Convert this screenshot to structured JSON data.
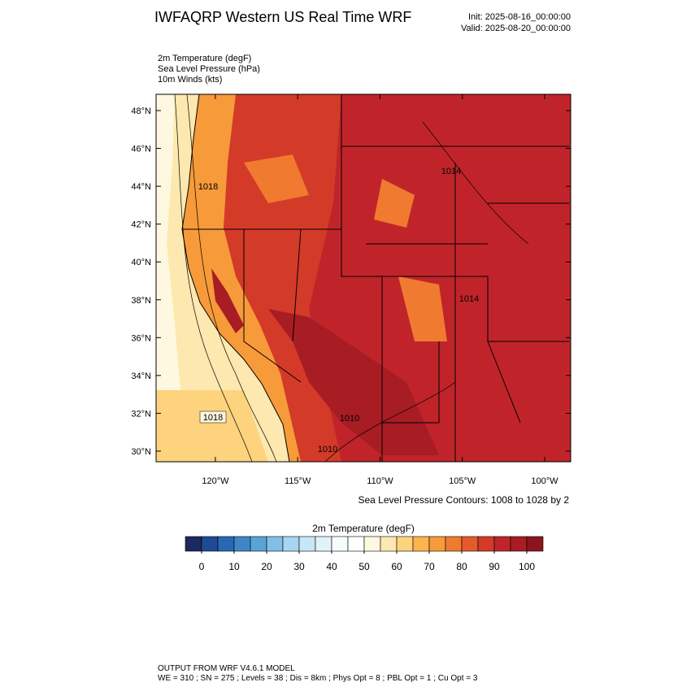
{
  "header": {
    "title": "IWFAQRP Western US Real Time WRF",
    "init": "Init: 2025-08-16_00:00:00",
    "valid": "Valid: 2025-08-20_00:00:00"
  },
  "fields": [
    "2m Temperature   (degF)",
    "Sea Level Pressure   (hPa)",
    "10m Winds   (kts)"
  ],
  "map": {
    "lon_range": [
      -123.6,
      -98.42
    ],
    "lat_range": [
      29.44,
      48.86
    ],
    "lat_ticks": [
      {
        "value": 30,
        "label": "30°N"
      },
      {
        "value": 32,
        "label": "32°N"
      },
      {
        "value": 34,
        "label": "34°N"
      },
      {
        "value": 36,
        "label": "36°N"
      },
      {
        "value": 38,
        "label": "38°N"
      },
      {
        "value": 40,
        "label": "40°N"
      },
      {
        "value": 42,
        "label": "42°N"
      },
      {
        "value": 44,
        "label": "44°N"
      },
      {
        "value": 46,
        "label": "46°N"
      },
      {
        "value": 48,
        "label": "48°N"
      }
    ],
    "lon_ticks": [
      {
        "value": -120,
        "label": "120°W"
      },
      {
        "value": -115,
        "label": "115°W"
      },
      {
        "value": -110,
        "label": "110°W"
      },
      {
        "value": -105,
        "label": "105°W"
      },
      {
        "value": -100,
        "label": "100°W"
      }
    ],
    "contour_labels": [
      "1018",
      "1010",
      "1018",
      "1014",
      "1014",
      "1010"
    ],
    "contour_note": "Sea Level Pressure Contours: 1008 to 1028 by 2"
  },
  "colorbar": {
    "title": "2m Temperature  (degF)",
    "ticks": [
      0,
      10,
      20,
      30,
      40,
      50,
      60,
      70,
      80,
      90,
      100
    ],
    "step": 5,
    "colors": [
      "#1a2a60",
      "#1f4a94",
      "#2a68b4",
      "#3f86c8",
      "#5aa3d8",
      "#80bfe6",
      "#a6d6f2",
      "#c8e6f8",
      "#e2f2fb",
      "#f6fbfe",
      "#ffffff",
      "#fff8e0",
      "#fde8b0",
      "#fdd37e",
      "#fbb44e",
      "#f79a3a",
      "#f07a30",
      "#e45a2c",
      "#d43a28",
      "#c0242a",
      "#a81c24",
      "#8c1420"
    ]
  },
  "footer": [
    "OUTPUT FROM WRF V4.6.1 MODEL",
    "WE = 310 ; SN = 275 ; Levels = 38 ; Dis = 8km ; Phys Opt = 8 ; PBL Opt = 1 ; Cu Opt = 3"
  ]
}
